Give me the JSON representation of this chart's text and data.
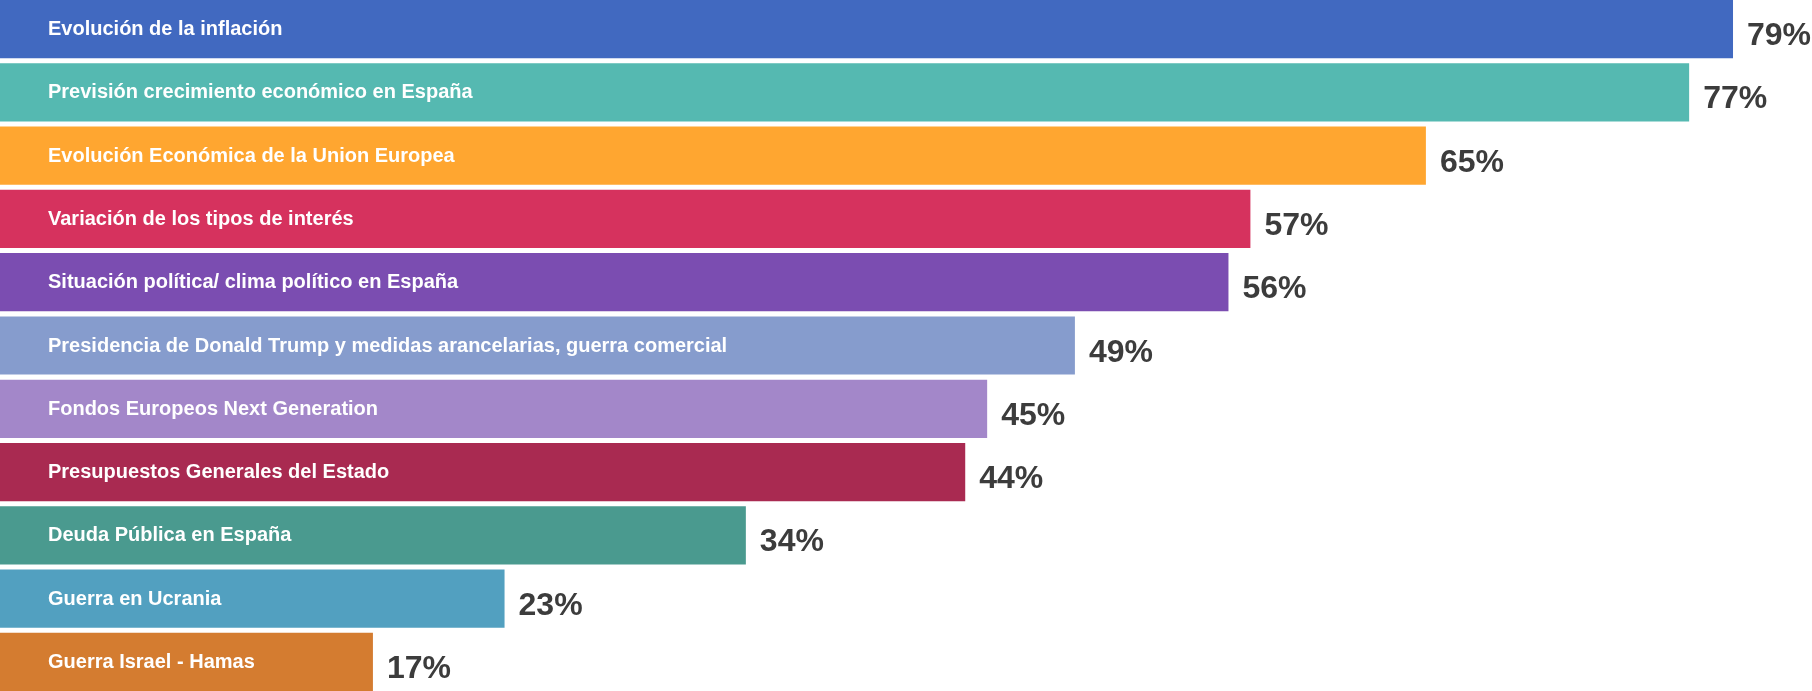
{
  "chart_data": {
    "type": "bar",
    "orientation": "horizontal",
    "categories": [
      "Evolución de la inflación",
      "Previsión crecimiento económico en España",
      "Evolución Económica de la Union Europea",
      "Variación de los tipos de interés",
      "Situación política/ clima político en España",
      "Presidencia de Donald Trump y medidas arancelarias, guerra comercial",
      "Fondos Europeos Next Generation",
      "Presupuestos Generales del Estado",
      "Deuda Pública en España",
      "Guerra en Ucrania",
      "Guerra Israel - Hamas"
    ],
    "values": [
      79,
      77,
      65,
      57,
      56,
      49,
      45,
      44,
      34,
      23,
      17
    ],
    "value_labels": [
      "79%",
      "77%",
      "65%",
      "57%",
      "56%",
      "49%",
      "45%",
      "44%",
      "34%",
      "23%",
      "17%"
    ],
    "colors": [
      "#4169c0",
      "#55b9b1",
      "#ffa630",
      "#d6325e",
      "#7b4db1",
      "#869ccd",
      "#a387c9",
      "#a92a51",
      "#4a9a8f",
      "#52a0c0",
      "#d47c30"
    ]
  }
}
